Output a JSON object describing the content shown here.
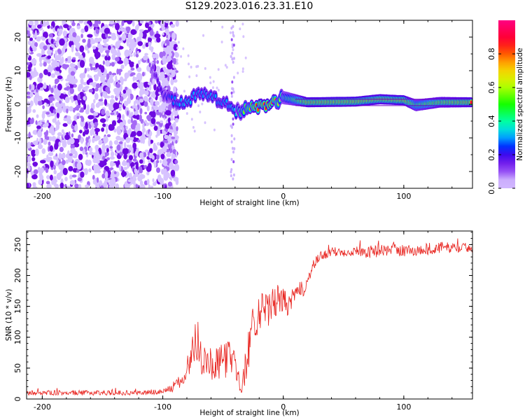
{
  "title": "S129.2023.016.23.31.E10",
  "chart_data": [
    {
      "type": "heatmap",
      "xlabel": "Height of straight line (km)",
      "ylabel": "Frequency (Hz)",
      "xlim": [
        -213,
        157
      ],
      "ylim": [
        -25,
        25
      ],
      "xticks": [
        -200,
        -100,
        0,
        100
      ],
      "yticks": [
        20,
        10,
        0,
        -10,
        -20
      ],
      "colorbar": {
        "label": "Normalized spectral amplitude",
        "range": [
          0.0,
          1.0
        ],
        "ticks": [
          0.0,
          0.2,
          0.4,
          0.6,
          0.8
        ]
      },
      "ridge": [
        {
          "x": -110,
          "y": 12,
          "amp": 0.12
        },
        {
          "x": -100,
          "y": 3,
          "amp": 0.2
        },
        {
          "x": -90,
          "y": 1,
          "amp": 0.3
        },
        {
          "x": -80,
          "y": 0,
          "amp": 0.35
        },
        {
          "x": -70,
          "y": 4,
          "amp": 0.3
        },
        {
          "x": -60,
          "y": 2,
          "amp": 0.32
        },
        {
          "x": -50,
          "y": 1,
          "amp": 0.3
        },
        {
          "x": -40,
          "y": -2.5,
          "amp": 0.35
        },
        {
          "x": -25,
          "y": -1,
          "amp": 0.85
        },
        {
          "x": -10,
          "y": 0,
          "amp": 0.95
        },
        {
          "x": 0,
          "y": 2,
          "amp": 0.5
        },
        {
          "x": 20,
          "y": 0.6,
          "amp": 0.95
        },
        {
          "x": 60,
          "y": 0.8,
          "amp": 0.95
        },
        {
          "x": 80,
          "y": 1.5,
          "amp": 0.9
        },
        {
          "x": 100,
          "y": 1.2,
          "amp": 0.95
        },
        {
          "x": 110,
          "y": -0.3,
          "amp": 0.7
        },
        {
          "x": 130,
          "y": 0.6,
          "amp": 0.85
        },
        {
          "x": 157,
          "y": 0.6,
          "amp": 0.95
        }
      ]
    },
    {
      "type": "line",
      "xlabel": "Height of straight line (km)",
      "ylabel": "SNR (10 * v/v)",
      "xlim": [
        -213,
        157
      ],
      "ylim": [
        0,
        272
      ],
      "xticks": [
        -200,
        -100,
        0,
        100
      ],
      "yticks": [
        0,
        50,
        100,
        150,
        200,
        250
      ],
      "series": [
        {
          "color": "#e8221d",
          "x": [
            -213,
            -180,
            -150,
            -120,
            -100,
            -90,
            -82,
            -78,
            -75,
            -72,
            -68,
            -62,
            -55,
            -50,
            -45,
            -40,
            -35,
            -30,
            -26,
            -20,
            -15,
            -10,
            -5,
            0,
            5,
            10,
            15,
            20,
            25,
            30,
            40,
            50,
            60,
            70,
            80,
            90,
            100,
            110,
            120,
            130,
            140,
            157
          ],
          "values": [
            10,
            10,
            10,
            10,
            12,
            20,
            35,
            60,
            80,
            95,
            70,
            60,
            55,
            60,
            70,
            60,
            10,
            70,
            110,
            150,
            140,
            150,
            160,
            160,
            150,
            170,
            175,
            190,
            215,
            230,
            238,
            238,
            240,
            238,
            240,
            242,
            240,
            240,
            243,
            245,
            245,
            245
          ],
          "noise": [
            4,
            4,
            4,
            4,
            5,
            8,
            15,
            25,
            35,
            35,
            30,
            28,
            28,
            30,
            30,
            25,
            8,
            35,
            40,
            35,
            30,
            30,
            25,
            20,
            18,
            18,
            15,
            12,
            10,
            8,
            8,
            8,
            8,
            10,
            10,
            10,
            10,
            10,
            10,
            10,
            8,
            8
          ]
        }
      ]
    }
  ]
}
